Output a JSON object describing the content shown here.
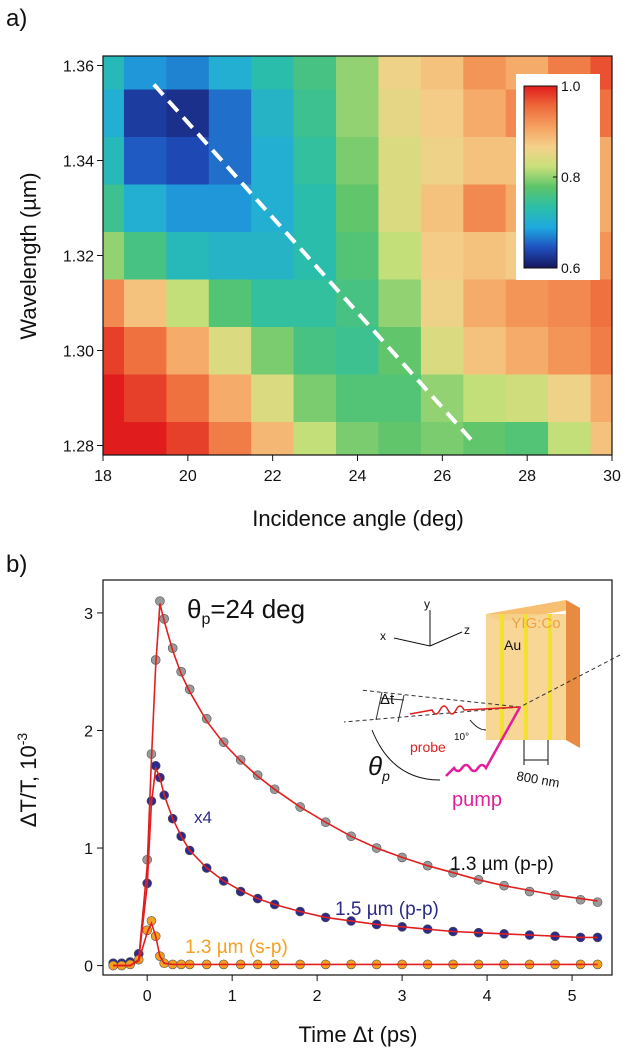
{
  "chart_data": [
    {
      "type": "contour",
      "panel_label": "a)",
      "x_label": "Incidence angle (deg)",
      "y_label": "Wavelength (µm)",
      "x": [
        18,
        19,
        20,
        21,
        22,
        23,
        24,
        25,
        26,
        27,
        28,
        29,
        30
      ],
      "y": [
        1.28,
        1.29,
        1.3,
        1.31,
        1.32,
        1.33,
        1.34,
        1.35,
        1.36
      ],
      "z": [
        [
          1.0,
          1.0,
          0.98,
          0.94,
          0.89,
          0.82,
          0.79,
          0.78,
          0.79,
          0.78,
          0.77,
          0.82,
          0.88
        ],
        [
          1.0,
          0.98,
          0.95,
          0.9,
          0.84,
          0.79,
          0.77,
          0.77,
          0.8,
          0.82,
          0.83,
          0.86,
          0.9
        ],
        [
          0.98,
          0.95,
          0.9,
          0.84,
          0.79,
          0.76,
          0.75,
          0.78,
          0.84,
          0.88,
          0.9,
          0.92,
          0.94
        ],
        [
          0.93,
          0.88,
          0.82,
          0.77,
          0.74,
          0.74,
          0.76,
          0.8,
          0.86,
          0.9,
          0.92,
          0.93,
          0.95
        ],
        [
          0.8,
          0.76,
          0.72,
          0.71,
          0.71,
          0.73,
          0.77,
          0.82,
          0.87,
          0.88,
          0.87,
          0.88,
          0.92
        ],
        [
          0.75,
          0.7,
          0.68,
          0.68,
          0.7,
          0.73,
          0.78,
          0.84,
          0.88,
          0.93,
          0.9,
          0.89,
          0.9
        ],
        [
          0.72,
          0.65,
          0.64,
          0.66,
          0.7,
          0.74,
          0.79,
          0.84,
          0.86,
          0.88,
          0.88,
          0.87,
          0.9
        ],
        [
          0.7,
          0.63,
          0.62,
          0.66,
          0.71,
          0.75,
          0.8,
          0.85,
          0.87,
          0.9,
          0.93,
          0.91,
          0.95
        ],
        [
          0.72,
          0.68,
          0.67,
          0.7,
          0.73,
          0.76,
          0.8,
          0.86,
          0.88,
          0.92,
          0.9,
          0.94,
          0.97
        ]
      ],
      "xlim": [
        18,
        30
      ],
      "ylim": [
        1.278,
        1.362
      ],
      "xticks": [
        18,
        20,
        22,
        24,
        26,
        28,
        30
      ],
      "yticks": [
        1.28,
        {
          "value": 1.3,
          "label": "1.30"
        },
        1.32,
        1.34,
        1.36
      ],
      "zlim": [
        0.6,
        1
      ],
      "zticks": [
        0.6,
        0.8,
        {
          "value": 1,
          "label": "1.0"
        }
      ],
      "colormap": [
        "#16165e",
        "#1f4fbf",
        "#1fa9e0",
        "#2bbfa8",
        "#5cc46a",
        "#c8e07a",
        "#f5d08a",
        "#f5a060",
        "#ee6a3a",
        "#e01c1c"
      ],
      "guide_line": {
        "x": [
          19.2,
          26.7
        ],
        "y": [
          1.356,
          1.281
        ],
        "color": "#ffffff"
      }
    },
    {
      "type": "scatter",
      "panel_label": "b)",
      "title_main": "θ",
      "title_sub": "p",
      "title_rest": "=24 deg",
      "x_label": "Time Δt (ps)",
      "y_label": "ΔT/T, 10",
      "y_label_exponent": "-3",
      "x": [
        -0.4,
        -0.3,
        -0.2,
        -0.1,
        0,
        0.05,
        0.1,
        0.15,
        0.2,
        0.3,
        0.4,
        0.5,
        0.7,
        0.9,
        1.1,
        1.3,
        1.5,
        1.8,
        2.1,
        2.4,
        2.7,
        3.0,
        3.3,
        3.6,
        3.9,
        4.2,
        4.5,
        4.8,
        5.1,
        5.3
      ],
      "series": [
        {
          "name": "1.3 µm (p-p)",
          "color": "#9a9a9a",
          "label_color": "#111111",
          "values": [
            0.02,
            0.02,
            0.03,
            0.1,
            0.9,
            1.8,
            2.6,
            3.1,
            2.95,
            2.7,
            2.5,
            2.35,
            2.1,
            1.9,
            1.75,
            1.62,
            1.5,
            1.35,
            1.22,
            1.1,
            1.0,
            0.92,
            0.85,
            0.79,
            0.73,
            0.68,
            0.63,
            0.6,
            0.56,
            0.54
          ]
        },
        {
          "name": "1.5 µm (p-p)",
          "color": "#2b2b8c",
          "label_color": "#2b2b8c",
          "scale_note": "x4",
          "values": [
            0.02,
            0.02,
            0.03,
            0.1,
            0.7,
            1.4,
            1.7,
            1.6,
            1.45,
            1.25,
            1.1,
            0.98,
            0.83,
            0.72,
            0.63,
            0.57,
            0.52,
            0.46,
            0.41,
            0.38,
            0.35,
            0.33,
            0.31,
            0.29,
            0.28,
            0.27,
            0.26,
            0.25,
            0.24,
            0.24
          ]
        },
        {
          "name": "1.3 µm (s-p)",
          "color": "#f5a020",
          "label_color": "#f5a020",
          "values": [
            0,
            0,
            0.01,
            0.05,
            0.3,
            0.38,
            0.25,
            0.08,
            0.02,
            0.01,
            0.01,
            0.01,
            0.01,
            0.01,
            0.01,
            0.01,
            0.01,
            0.01,
            0.01,
            0.01,
            0.01,
            0.01,
            0.01,
            0.01,
            0.01,
            0.01,
            0.01,
            0.01,
            0.01,
            0.01
          ]
        }
      ],
      "fits": [
        {
          "color": "#e02020",
          "values": [
            0,
            0,
            0,
            0.05,
            0.85,
            1.75,
            2.55,
            3.08,
            2.93,
            2.68,
            2.48,
            2.33,
            2.08,
            1.89,
            1.74,
            1.61,
            1.5,
            1.35,
            1.22,
            1.1,
            1.0,
            0.92,
            0.85,
            0.79,
            0.73,
            0.68,
            0.64,
            0.6,
            0.57,
            0.55
          ]
        },
        {
          "color": "#e02020",
          "values": [
            0,
            0,
            0,
            0.05,
            0.68,
            1.38,
            1.68,
            1.6,
            1.45,
            1.25,
            1.1,
            0.98,
            0.83,
            0.72,
            0.64,
            0.57,
            0.52,
            0.46,
            0.41,
            0.38,
            0.35,
            0.33,
            0.31,
            0.29,
            0.28,
            0.27,
            0.26,
            0.25,
            0.24,
            0.24
          ]
        },
        {
          "color": "#e02020",
          "values": [
            0,
            0,
            0,
            0.04,
            0.28,
            0.36,
            0.25,
            0.08,
            0.02,
            0.01,
            0.01,
            0.01,
            0.01,
            0.01,
            0.01,
            0.01,
            0.01,
            0.01,
            0.01,
            0.01,
            0.01,
            0.01,
            0.01,
            0.01,
            0.01,
            0.01,
            0.01,
            0.01,
            0.01,
            0.01
          ]
        }
      ],
      "xlim": [
        -0.52,
        5.47
      ],
      "ylim": [
        -0.08,
        3.28
      ],
      "xticks": [
        0,
        1,
        2,
        3,
        4,
        5
      ],
      "yticks": [
        0,
        1,
        2,
        3
      ],
      "inset": {
        "sample": "YIG:Co",
        "film": "Au",
        "delay": "Δt",
        "probe": "probe",
        "pump": "pump",
        "angle": "θ",
        "angle_sub": "p",
        "period": "800 nm",
        "tilt": "10°",
        "axis_x": "x",
        "axis_y": "y",
        "axis_z": "z"
      }
    }
  ]
}
